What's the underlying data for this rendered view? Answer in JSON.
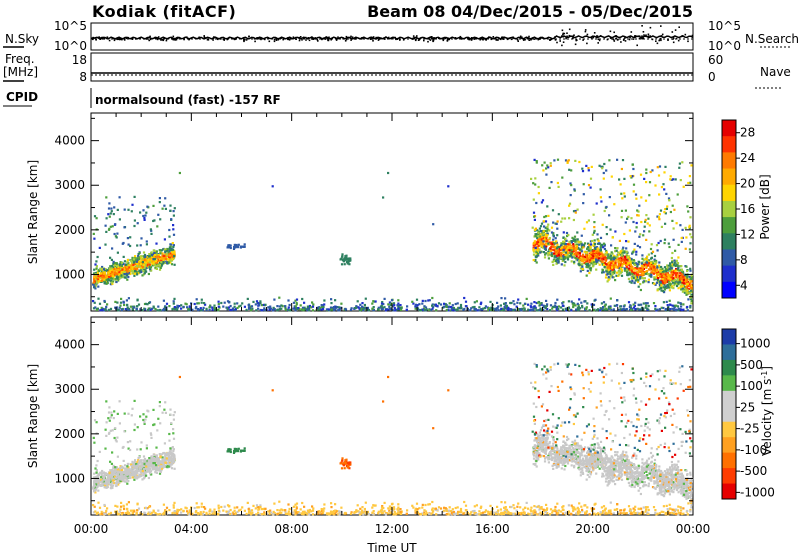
{
  "header": {
    "station": "Kodiak (fitACF)",
    "beam_date": "Beam 08  04/Dec/2015 - 05/Dec/2015"
  },
  "noise_panel": {
    "left_label": "N.Sky",
    "right_label": "N.Search",
    "left_ticks": [
      "10^5",
      "10^0"
    ],
    "right_ticks": [
      "10^5",
      "10^0"
    ]
  },
  "freq_panel": {
    "left_label_top": "Freq.",
    "left_label_unit": "[MHz]",
    "right_label": "Nave",
    "left_ticks": [
      "18",
      "8"
    ],
    "right_ticks": [
      "60",
      "0"
    ]
  },
  "cpid": {
    "label": "CPID",
    "text": "normalsound (fast) -157 RF"
  },
  "chart_data": [
    {
      "type": "heatmap",
      "quantity": "Power",
      "ylabel": "Slant Range [km]",
      "ylim": [
        180,
        4620
      ],
      "y_ticks": [
        "4000",
        "3000",
        "2000",
        "1000"
      ],
      "xlim_hours": [
        0,
        24
      ],
      "colorbar_label": "Power [dB]",
      "colorbar_ticks": [
        "28",
        "24",
        "20",
        "16",
        "12",
        "8",
        "4"
      ],
      "colorbar_colors": [
        "#e50000",
        "#ff3300",
        "#ff7a00",
        "#ffaa00",
        "#ffd400",
        "#a8d040",
        "#4d9e3c",
        "#2e8060",
        "#2f5aa6",
        "#1e2fcc",
        "#0000ff"
      ]
    },
    {
      "type": "heatmap",
      "quantity": "Velocity",
      "ylabel": "Slant Range [km]",
      "ylim": [
        180,
        4620
      ],
      "y_ticks": [
        "4000",
        "3000",
        "2000",
        "1000"
      ],
      "xlim_hours": [
        0,
        24
      ],
      "colorbar_label": "Velocity [m s^-1]",
      "colorbar_ticks": [
        "1000",
        "500",
        "100",
        "25",
        "-25",
        "-100",
        "-500",
        "-1000"
      ],
      "colorbar_colors": [
        "#1c3ca8",
        "#2e6e9a",
        "#2e8a4c",
        "#58b84a",
        "#cfcfcf",
        "#cfcfcf",
        "#ffc840",
        "#ffa020",
        "#ff7000",
        "#ff3c00",
        "#e60000"
      ],
      "ground_scatter_color": "#c8c8c8"
    }
  ],
  "time_axis": {
    "ticks": [
      "00:00",
      "04:00",
      "08:00",
      "12:00",
      "16:00",
      "20:00",
      "00:00"
    ],
    "label": "Time UT"
  }
}
